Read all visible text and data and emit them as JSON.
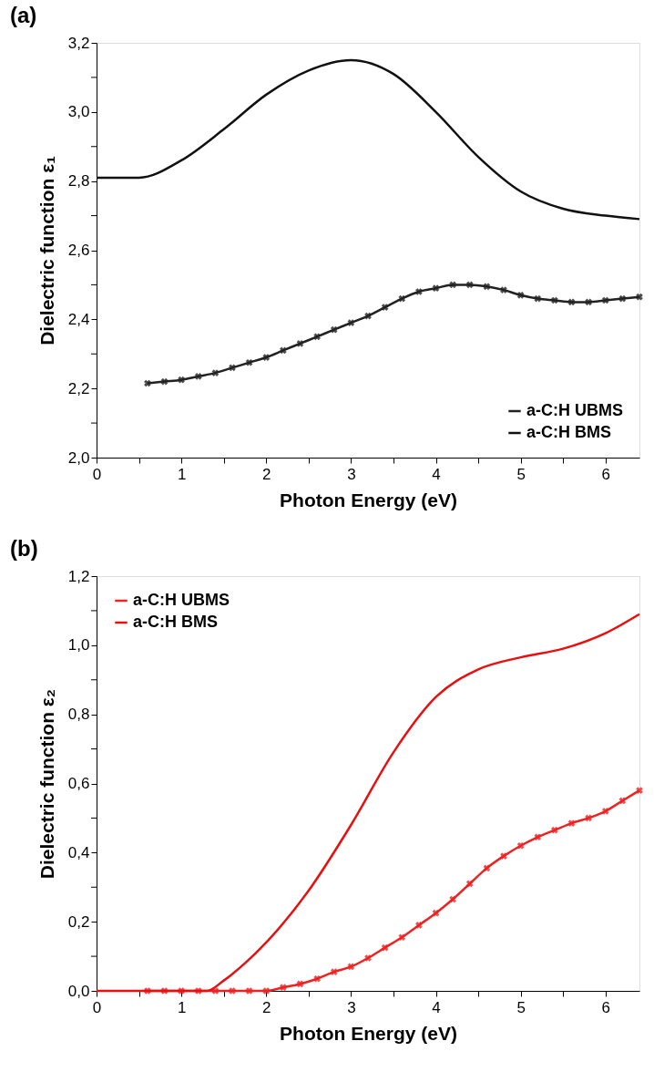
{
  "chart_data": [
    {
      "type": "line",
      "title": "(a)",
      "xlabel": "Photon Energy (eV)",
      "ylabel": "Dielectric function ε₁",
      "xlim": [
        0,
        6.4
      ],
      "ylim": [
        2.0,
        3.2
      ],
      "xticks": [
        0,
        {
          "value": 0.5,
          "label": null
        },
        1,
        {
          "value": 1.5,
          "label": null
        },
        2,
        {
          "value": 2.5,
          "label": null
        },
        3,
        {
          "value": 3.5,
          "label": null
        },
        4,
        {
          "value": 4.5,
          "label": null
        },
        5,
        {
          "value": 5.5,
          "label": null
        },
        6
      ],
      "yticks": [
        {
          "value": 2.0,
          "label": "2,0"
        },
        {
          "value": 2.1,
          "label": null
        },
        {
          "value": 2.2,
          "label": "2,2"
        },
        {
          "value": 2.3,
          "label": null
        },
        {
          "value": 2.4,
          "label": "2,4"
        },
        {
          "value": 2.5,
          "label": null
        },
        {
          "value": 2.6,
          "label": "2,6"
        },
        {
          "value": 2.7,
          "label": null
        },
        {
          "value": 2.8,
          "label": "2,8"
        },
        {
          "value": 2.9,
          "label": null
        },
        {
          "value": 3.0,
          "label": "3,0"
        },
        {
          "value": 3.1,
          "label": null
        },
        {
          "value": 3.2,
          "label": "3,2"
        }
      ],
      "grid": false,
      "legend": "bottom right",
      "line_style": "solid",
      "series": [
        {
          "name": "a-C:H UBMS",
          "color": "#222222",
          "marker": "cross",
          "x": [
            0.6,
            0.8,
            1.0,
            1.2,
            1.4,
            1.6,
            1.8,
            2.0,
            2.2,
            2.4,
            2.6,
            2.8,
            3.0,
            3.2,
            3.4,
            3.6,
            3.8,
            4.0,
            4.2,
            4.4,
            4.6,
            4.8,
            5.0,
            5.2,
            5.4,
            5.6,
            5.8,
            6.0,
            6.2,
            6.4
          ],
          "values": [
            2.215,
            2.22,
            2.225,
            2.235,
            2.245,
            2.26,
            2.275,
            2.29,
            2.31,
            2.33,
            2.35,
            2.37,
            2.39,
            2.41,
            2.435,
            2.46,
            2.48,
            2.49,
            2.5,
            2.5,
            2.495,
            2.485,
            2.47,
            2.46,
            2.455,
            2.45,
            2.45,
            2.455,
            2.46,
            2.465
          ]
        },
        {
          "name": "a-C:H BMS",
          "color": "#111111",
          "marker": "none",
          "x": [
            0,
            0.5,
            1.0,
            1.5,
            2.0,
            2.5,
            3.0,
            3.5,
            4.0,
            4.5,
            5.0,
            5.5,
            6.0,
            6.4
          ],
          "values": [
            2.81,
            2.81,
            2.86,
            2.95,
            3.05,
            3.12,
            3.15,
            3.11,
            3.0,
            2.87,
            2.77,
            2.72,
            2.7,
            2.69
          ]
        }
      ]
    },
    {
      "type": "line",
      "title": "(b)",
      "xlabel": "Photon Energy (eV)",
      "ylabel": "Dielectric function ε₂",
      "xlim": [
        0,
        6.4
      ],
      "ylim": [
        0.0,
        1.2
      ],
      "xticks": [
        0,
        {
          "value": 0.5,
          "label": null
        },
        1,
        {
          "value": 1.5,
          "label": null
        },
        2,
        {
          "value": 2.5,
          "label": null
        },
        3,
        {
          "value": 3.5,
          "label": null
        },
        4,
        {
          "value": 4.5,
          "label": null
        },
        5,
        {
          "value": 5.5,
          "label": null
        },
        6
      ],
      "yticks": [
        {
          "value": 0.0,
          "label": "0,0"
        },
        {
          "value": 0.1,
          "label": null
        },
        {
          "value": 0.2,
          "label": "0,2"
        },
        {
          "value": 0.3,
          "label": null
        },
        {
          "value": 0.4,
          "label": "0,4"
        },
        {
          "value": 0.5,
          "label": null
        },
        {
          "value": 0.6,
          "label": "0,6"
        },
        {
          "value": 0.7,
          "label": null
        },
        {
          "value": 0.8,
          "label": "0,8"
        },
        {
          "value": 0.9,
          "label": null
        },
        {
          "value": 1.0,
          "label": "1,0"
        },
        {
          "value": 1.1,
          "label": null
        },
        {
          "value": 1.2,
          "label": "1,2"
        }
      ],
      "grid": false,
      "legend": "top left",
      "line_style": "solid",
      "series": [
        {
          "name": "a-C:H UBMS",
          "color": "#ee2222",
          "marker": "cross",
          "x": [
            0.6,
            0.8,
            1.0,
            1.2,
            1.4,
            1.6,
            1.8,
            2.0,
            2.2,
            2.4,
            2.6,
            2.8,
            3.0,
            3.2,
            3.4,
            3.6,
            3.8,
            4.0,
            4.2,
            4.4,
            4.6,
            4.8,
            5.0,
            5.2,
            5.4,
            5.6,
            5.8,
            6.0,
            6.2,
            6.4
          ],
          "values": [
            0,
            0,
            0,
            0,
            0,
            0,
            0,
            0,
            0.01,
            0.02,
            0.035,
            0.055,
            0.07,
            0.095,
            0.125,
            0.155,
            0.19,
            0.225,
            0.265,
            0.31,
            0.355,
            0.39,
            0.42,
            0.445,
            0.465,
            0.485,
            0.5,
            0.52,
            0.55,
            0.58
          ]
        },
        {
          "name": "a-C:H BMS",
          "color": "#e80f0f",
          "marker": "none",
          "x": [
            0,
            0.5,
            1.0,
            1.3,
            1.5,
            1.75,
            2.0,
            2.5,
            3.0,
            3.5,
            4.0,
            4.5,
            5.0,
            5.5,
            6.0,
            6.4
          ],
          "values": [
            0,
            0,
            0,
            0,
            0.03,
            0.08,
            0.14,
            0.29,
            0.48,
            0.69,
            0.85,
            0.93,
            0.965,
            0.99,
            1.035,
            1.09
          ]
        }
      ]
    }
  ]
}
